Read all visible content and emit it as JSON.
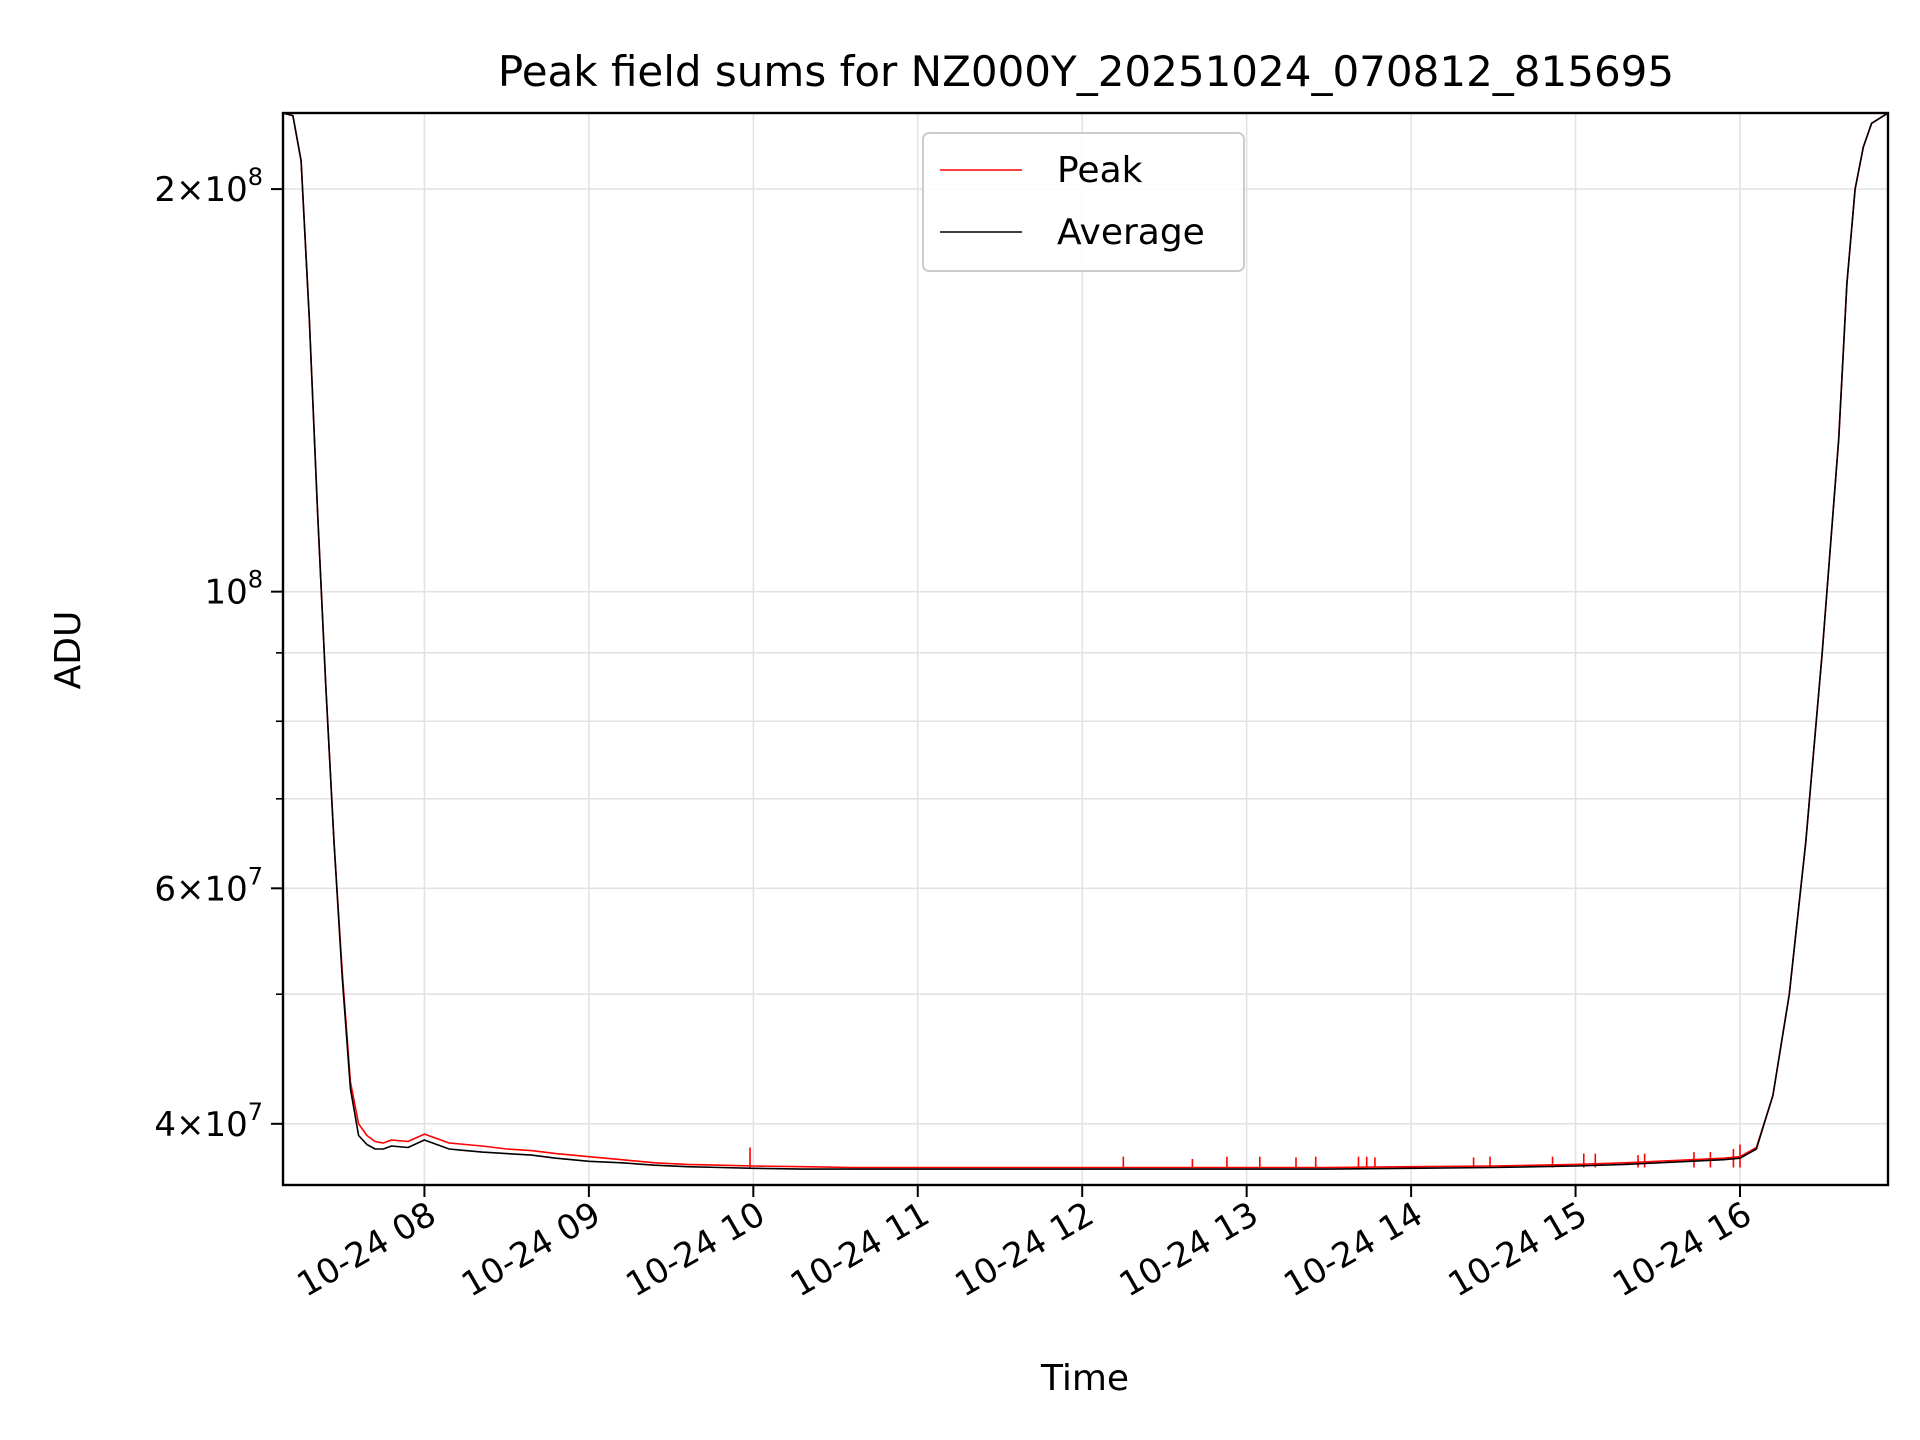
{
  "chart_data": {
    "type": "line",
    "title": "Peak field sums for NZ000Y_20251024_070812_815695",
    "xlabel": "Time",
    "ylabel": "ADU",
    "yscale": "log",
    "ylim": [
      36000000,
      228000000
    ],
    "xlim_hours": [
      7.14,
      16.9
    ],
    "grid": true,
    "legend_position": "top-center",
    "x_ticks": [
      {
        "value": 8,
        "label": "10-24 08"
      },
      {
        "value": 9,
        "label": "10-24 09"
      },
      {
        "value": 10,
        "label": "10-24 10"
      },
      {
        "value": 11,
        "label": "10-24 11"
      },
      {
        "value": 12,
        "label": "10-24 12"
      },
      {
        "value": 13,
        "label": "10-24 13"
      },
      {
        "value": 14,
        "label": "10-24 14"
      },
      {
        "value": 15,
        "label": "10-24 15"
      },
      {
        "value": 16,
        "label": "10-24 16"
      }
    ],
    "y_major_ticks": [
      {
        "value": 40000000,
        "mantissa": "4",
        "exponent": "7"
      },
      {
        "value": 60000000,
        "mantissa": "6",
        "exponent": "7"
      },
      {
        "value": 100000000,
        "mantissa": "",
        "exponent": "8"
      },
      {
        "value": 200000000,
        "mantissa": "2",
        "exponent": "8"
      }
    ],
    "y_minor_ticks": [
      50000000,
      70000000,
      80000000,
      90000000
    ],
    "series": [
      {
        "name": "Peak",
        "color": "#ff0000",
        "x_hours": [
          7.14,
          7.2,
          7.25,
          7.3,
          7.35,
          7.4,
          7.45,
          7.5,
          7.55,
          7.6,
          7.65,
          7.7,
          7.75,
          7.8,
          7.9,
          8.0,
          8.1,
          8.15,
          8.25,
          8.35,
          8.5,
          8.65,
          8.8,
          9.0,
          9.2,
          9.4,
          9.6,
          9.8,
          10.0,
          10.3,
          10.6,
          11.0,
          11.5,
          12.0,
          12.5,
          13.0,
          13.5,
          14.0,
          14.5,
          15.0,
          15.3,
          15.6,
          15.9,
          16.0,
          16.1,
          16.2,
          16.3,
          16.4,
          16.5,
          16.6,
          16.65,
          16.7,
          16.75,
          16.8,
          16.9
        ],
        "values": [
          228000000,
          227000000,
          210000000,
          160000000,
          115000000,
          85000000,
          65000000,
          52000000,
          43000000,
          40000000,
          39200000,
          38800000,
          38700000,
          38900000,
          38800000,
          39300000,
          38900000,
          38700000,
          38600000,
          38500000,
          38300000,
          38200000,
          38000000,
          37800000,
          37600000,
          37400000,
          37300000,
          37250000,
          37200000,
          37150000,
          37100000,
          37100000,
          37100000,
          37100000,
          37100000,
          37100000,
          37100000,
          37150000,
          37200000,
          37300000,
          37400000,
          37550000,
          37700000,
          37800000,
          38400000,
          42000000,
          50000000,
          65000000,
          90000000,
          130000000,
          170000000,
          200000000,
          215000000,
          224000000,
          228000000
        ],
        "spikes": [
          {
            "x_hours": 9.98,
            "value": 38400000
          },
          {
            "x_hours": 12.25,
            "value": 37800000
          },
          {
            "x_hours": 12.67,
            "value": 37650000
          },
          {
            "x_hours": 12.88,
            "value": 37800000
          },
          {
            "x_hours": 13.08,
            "value": 37800000
          },
          {
            "x_hours": 13.3,
            "value": 37750000
          },
          {
            "x_hours": 13.42,
            "value": 37800000
          },
          {
            "x_hours": 13.68,
            "value": 37800000
          },
          {
            "x_hours": 13.73,
            "value": 37800000
          },
          {
            "x_hours": 13.78,
            "value": 37750000
          },
          {
            "x_hours": 14.38,
            "value": 37750000
          },
          {
            "x_hours": 14.48,
            "value": 37800000
          },
          {
            "x_hours": 14.86,
            "value": 37800000
          },
          {
            "x_hours": 15.05,
            "value": 38000000
          },
          {
            "x_hours": 15.12,
            "value": 38000000
          },
          {
            "x_hours": 15.38,
            "value": 37900000
          },
          {
            "x_hours": 15.42,
            "value": 38000000
          },
          {
            "x_hours": 15.72,
            "value": 38100000
          },
          {
            "x_hours": 15.82,
            "value": 38100000
          },
          {
            "x_hours": 15.96,
            "value": 38300000
          },
          {
            "x_hours": 16.0,
            "value": 38600000
          }
        ]
      },
      {
        "name": "Average",
        "color": "#000000",
        "x_hours": [
          7.14,
          7.2,
          7.25,
          7.3,
          7.35,
          7.4,
          7.45,
          7.5,
          7.55,
          7.6,
          7.65,
          7.7,
          7.75,
          7.8,
          7.9,
          8.0,
          8.1,
          8.15,
          8.25,
          8.35,
          8.5,
          8.65,
          8.8,
          9.0,
          9.2,
          9.4,
          9.6,
          9.8,
          10.0,
          10.3,
          10.6,
          11.0,
          11.5,
          12.0,
          12.5,
          13.0,
          13.5,
          14.0,
          14.5,
          15.0,
          15.3,
          15.6,
          15.9,
          16.0,
          16.1,
          16.2,
          16.3,
          16.4,
          16.5,
          16.6,
          16.65,
          16.7,
          16.75,
          16.8,
          16.9
        ],
        "values": [
          228000000,
          227000000,
          210000000,
          160000000,
          115000000,
          85000000,
          65000000,
          51500000,
          42500000,
          39200000,
          38600000,
          38300000,
          38300000,
          38500000,
          38400000,
          38900000,
          38500000,
          38300000,
          38200000,
          38100000,
          38000000,
          37900000,
          37700000,
          37500000,
          37400000,
          37250000,
          37150000,
          37100000,
          37050000,
          37000000,
          37000000,
          37000000,
          37000000,
          37000000,
          37000000,
          37000000,
          37000000,
          37050000,
          37100000,
          37200000,
          37300000,
          37450000,
          37600000,
          37700000,
          38300000,
          42000000,
          50000000,
          65000000,
          90000000,
          130000000,
          170000000,
          200000000,
          215000000,
          224000000,
          228000000
        ]
      }
    ]
  }
}
